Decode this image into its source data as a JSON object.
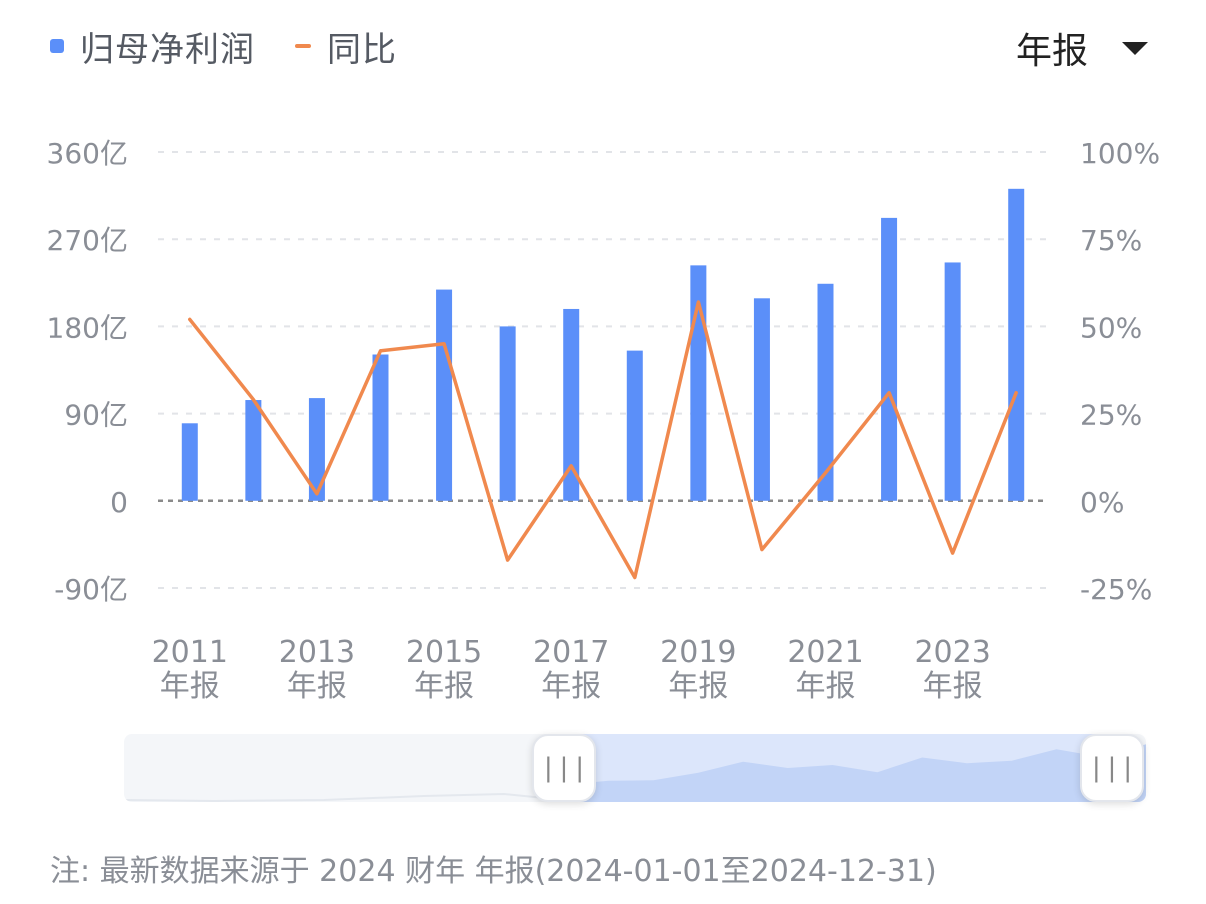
{
  "legend": {
    "bar_label": "归母净利润",
    "line_label": "同比"
  },
  "period_select": {
    "value": "年报"
  },
  "chart_data": {
    "type": "bar",
    "categories": [
      "2011",
      "2012",
      "2013",
      "2014",
      "2015",
      "2016",
      "2017",
      "2018",
      "2019",
      "2020",
      "2021",
      "2022",
      "2023",
      "2024"
    ],
    "x_tick_labels": [
      {
        "year": "2011",
        "suffix": "年报"
      },
      {
        "year": "2013",
        "suffix": "年报"
      },
      {
        "year": "2015",
        "suffix": "年报"
      },
      {
        "year": "2017",
        "suffix": "年报"
      },
      {
        "year": "2019",
        "suffix": "年报"
      },
      {
        "year": "2021",
        "suffix": "年报"
      },
      {
        "year": "2023",
        "suffix": "年报"
      }
    ],
    "series": [
      {
        "name": "归母净利润",
        "kind": "bar",
        "axis": "left",
        "color": "#5b8ff9",
        "values": [
          80,
          104,
          106,
          151,
          218,
          180,
          198,
          155,
          243,
          209,
          224,
          292,
          246,
          322
        ]
      },
      {
        "name": "同比",
        "kind": "line",
        "axis": "right",
        "color": "#f0894e",
        "values": [
          52,
          29,
          2,
          43,
          45,
          -17,
          10,
          -22,
          57,
          -14,
          8,
          31,
          -15,
          31
        ]
      }
    ],
    "y_left": {
      "ticks": [
        "360亿",
        "270亿",
        "180亿",
        "90亿",
        "0",
        "-90亿"
      ],
      "range": [
        -90,
        360
      ]
    },
    "y_right": {
      "ticks": [
        "100%",
        "75%",
        "50%",
        "25%",
        "0%",
        "-25%"
      ],
      "range": [
        -25,
        100
      ]
    },
    "grid": true
  },
  "overview_slider": {
    "handle_left_glyph": "|||",
    "handle_right_glyph": "|||"
  },
  "footer": {
    "note": "注: 最新数据来源于 2024 财年 年报(2024-01-01至2024-12-31)"
  }
}
